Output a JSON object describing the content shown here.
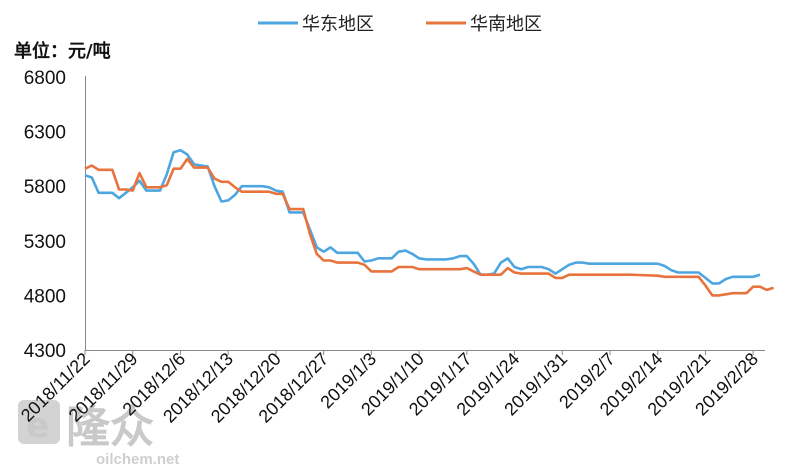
{
  "chart_data": {
    "type": "line",
    "unit_label": "单位：元/吨",
    "ylim": [
      4300,
      6800
    ],
    "yticks": [
      4300,
      4800,
      5300,
      5800,
      6300,
      6800
    ],
    "x_tick_labels": [
      "2018/11/22",
      "2018/11/29",
      "2018/12/6",
      "2018/12/13",
      "2018/12/20",
      "2018/12/27",
      "2019/1/3",
      "2019/1/10",
      "2019/1/17",
      "2019/1/24",
      "2019/1/31",
      "2019/2/7",
      "2019/2/14",
      "2019/2/21",
      "2019/2/28"
    ],
    "x_tick_steps": [
      0,
      7,
      14,
      21,
      28,
      35,
      42,
      49,
      56,
      63,
      70,
      77,
      84,
      91,
      98
    ],
    "x_step_range": [
      0,
      99
    ],
    "grid": false,
    "legend_position": "top",
    "series": [
      {
        "name": "华东地区",
        "color": "#4da6e0",
        "points": [
          [
            0,
            5900
          ],
          [
            1,
            5880
          ],
          [
            2,
            5740
          ],
          [
            4,
            5740
          ],
          [
            5,
            5690
          ],
          [
            6,
            5740
          ],
          [
            7,
            5790
          ],
          [
            8,
            5850
          ],
          [
            9,
            5760
          ],
          [
            10,
            5760
          ],
          [
            11,
            5760
          ],
          [
            12,
            5910
          ],
          [
            13,
            6110
          ],
          [
            14,
            6130
          ],
          [
            15,
            6090
          ],
          [
            16,
            6000
          ],
          [
            17,
            5990
          ],
          [
            18,
            5980
          ],
          [
            19,
            5800
          ],
          [
            20,
            5660
          ],
          [
            21,
            5670
          ],
          [
            22,
            5720
          ],
          [
            23,
            5800
          ],
          [
            25,
            5800
          ],
          [
            26,
            5800
          ],
          [
            27,
            5790
          ],
          [
            28,
            5760
          ],
          [
            29,
            5750
          ],
          [
            30,
            5560
          ],
          [
            31,
            5560
          ],
          [
            32,
            5560
          ],
          [
            33,
            5400
          ],
          [
            34,
            5240
          ],
          [
            35,
            5200
          ],
          [
            36,
            5240
          ],
          [
            37,
            5190
          ],
          [
            38,
            5190
          ],
          [
            39,
            5190
          ],
          [
            40,
            5190
          ],
          [
            41,
            5110
          ],
          [
            42,
            5120
          ],
          [
            43,
            5140
          ],
          [
            44,
            5140
          ],
          [
            45,
            5140
          ],
          [
            46,
            5200
          ],
          [
            47,
            5210
          ],
          [
            48,
            5180
          ],
          [
            49,
            5140
          ],
          [
            50,
            5130
          ],
          [
            51,
            5130
          ],
          [
            52,
            5130
          ],
          [
            53,
            5130
          ],
          [
            54,
            5140
          ],
          [
            55,
            5160
          ],
          [
            56,
            5160
          ],
          [
            57,
            5090
          ],
          [
            58,
            4990
          ],
          [
            59,
            4990
          ],
          [
            60,
            5000
          ],
          [
            61,
            5100
          ],
          [
            62,
            5140
          ],
          [
            63,
            5060
          ],
          [
            64,
            5040
          ],
          [
            65,
            5060
          ],
          [
            66,
            5060
          ],
          [
            67,
            5060
          ],
          [
            68,
            5040
          ],
          [
            69,
            5000
          ],
          [
            70,
            5040
          ],
          [
            71,
            5080
          ],
          [
            72,
            5100
          ],
          [
            73,
            5100
          ],
          [
            74,
            5090
          ],
          [
            75,
            5090
          ],
          [
            76,
            5090
          ],
          [
            80,
            5090
          ],
          [
            84,
            5090
          ],
          [
            85,
            5070
          ],
          [
            86,
            5030
          ],
          [
            87,
            5010
          ],
          [
            90,
            5010
          ],
          [
            91,
            4960
          ],
          [
            92,
            4910
          ],
          [
            93,
            4910
          ],
          [
            94,
            4950
          ],
          [
            95,
            4970
          ],
          [
            98,
            4970
          ],
          [
            99,
            4990
          ]
        ]
      },
      {
        "name": "华南地区",
        "color": "#e8733c",
        "points": [
          [
            0,
            5960
          ],
          [
            1,
            5990
          ],
          [
            2,
            5950
          ],
          [
            4,
            5950
          ],
          [
            5,
            5770
          ],
          [
            6,
            5770
          ],
          [
            7,
            5760
          ],
          [
            8,
            5920
          ],
          [
            9,
            5790
          ],
          [
            10,
            5790
          ],
          [
            11,
            5790
          ],
          [
            12,
            5810
          ],
          [
            13,
            5960
          ],
          [
            14,
            5960
          ],
          [
            15,
            6050
          ],
          [
            16,
            5970
          ],
          [
            17,
            5970
          ],
          [
            18,
            5970
          ],
          [
            19,
            5870
          ],
          [
            20,
            5840
          ],
          [
            21,
            5840
          ],
          [
            22,
            5790
          ],
          [
            23,
            5750
          ],
          [
            25,
            5750
          ],
          [
            26,
            5750
          ],
          [
            27,
            5750
          ],
          [
            28,
            5730
          ],
          [
            29,
            5730
          ],
          [
            30,
            5590
          ],
          [
            31,
            5590
          ],
          [
            32,
            5590
          ],
          [
            33,
            5360
          ],
          [
            34,
            5180
          ],
          [
            35,
            5120
          ],
          [
            36,
            5120
          ],
          [
            37,
            5100
          ],
          [
            38,
            5100
          ],
          [
            39,
            5100
          ],
          [
            40,
            5100
          ],
          [
            41,
            5080
          ],
          [
            42,
            5020
          ],
          [
            43,
            5020
          ],
          [
            44,
            5020
          ],
          [
            45,
            5020
          ],
          [
            46,
            5060
          ],
          [
            47,
            5060
          ],
          [
            48,
            5060
          ],
          [
            49,
            5040
          ],
          [
            50,
            5040
          ],
          [
            51,
            5040
          ],
          [
            52,
            5040
          ],
          [
            53,
            5040
          ],
          [
            54,
            5040
          ],
          [
            55,
            5040
          ],
          [
            56,
            5050
          ],
          [
            57,
            5020
          ],
          [
            58,
            4990
          ],
          [
            59,
            4990
          ],
          [
            60,
            4990
          ],
          [
            61,
            4990
          ],
          [
            62,
            5050
          ],
          [
            63,
            5010
          ],
          [
            64,
            5000
          ],
          [
            65,
            5000
          ],
          [
            66,
            5000
          ],
          [
            67,
            5000
          ],
          [
            68,
            5000
          ],
          [
            69,
            4960
          ],
          [
            70,
            4960
          ],
          [
            71,
            4990
          ],
          [
            72,
            4990
          ],
          [
            73,
            4990
          ],
          [
            74,
            4990
          ],
          [
            75,
            4990
          ],
          [
            76,
            4990
          ],
          [
            80,
            4990
          ],
          [
            84,
            4980
          ],
          [
            85,
            4970
          ],
          [
            86,
            4970
          ],
          [
            87,
            4970
          ],
          [
            90,
            4970
          ],
          [
            91,
            4890
          ],
          [
            92,
            4800
          ],
          [
            93,
            4800
          ],
          [
            94,
            4810
          ],
          [
            95,
            4820
          ],
          [
            96,
            4820
          ],
          [
            97,
            4820
          ],
          [
            98,
            4880
          ],
          [
            99,
            4880
          ],
          [
            100,
            4850
          ],
          [
            101,
            4870
          ]
        ]
      }
    ]
  },
  "watermark": {
    "logo_text": "隆众",
    "url_text": "oilchem.net",
    "color": "#c8c8c8"
  }
}
